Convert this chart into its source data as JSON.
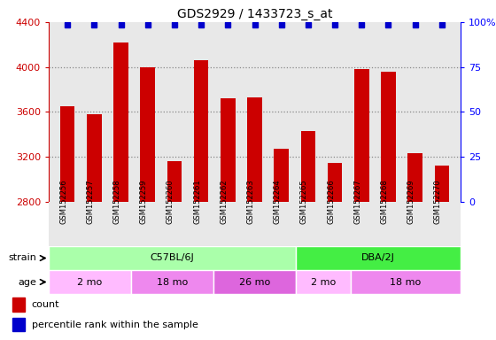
{
  "title": "GDS2929 / 1433723_s_at",
  "samples": [
    "GSM152256",
    "GSM152257",
    "GSM152258",
    "GSM152259",
    "GSM152260",
    "GSM152261",
    "GSM152262",
    "GSM152263",
    "GSM152264",
    "GSM152265",
    "GSM152266",
    "GSM152267",
    "GSM152268",
    "GSM152269",
    "GSM152270"
  ],
  "counts": [
    3650,
    3580,
    4220,
    4000,
    3160,
    4060,
    3720,
    3730,
    3270,
    3430,
    3150,
    3980,
    3960,
    3230,
    3120
  ],
  "ylim": [
    2800,
    4400
  ],
  "yticks": [
    2800,
    3200,
    3600,
    4000,
    4400
  ],
  "bar_color": "#cc0000",
  "dot_color": "#0000cc",
  "right_yticks": [
    0,
    25,
    50,
    75,
    100
  ],
  "right_ylim": [
    0,
    100
  ],
  "strain_groups": [
    {
      "label": "C57BL/6J",
      "start": 0,
      "end": 9,
      "color": "#aaffaa"
    },
    {
      "label": "DBA/2J",
      "start": 9,
      "end": 15,
      "color": "#44ee44"
    }
  ],
  "age_groups": [
    {
      "label": "2 mo",
      "start": 0,
      "end": 3,
      "color": "#ffbbff"
    },
    {
      "label": "18 mo",
      "start": 3,
      "end": 6,
      "color": "#ee88ee"
    },
    {
      "label": "26 mo",
      "start": 6,
      "end": 9,
      "color": "#dd66dd"
    },
    {
      "label": "2 mo",
      "start": 9,
      "end": 11,
      "color": "#ffbbff"
    },
    {
      "label": "18 mo",
      "start": 11,
      "end": 15,
      "color": "#ee88ee"
    }
  ],
  "bg_color": "#ffffff",
  "plot_bg": "#e8e8e8",
  "dotted_color": "#888888"
}
